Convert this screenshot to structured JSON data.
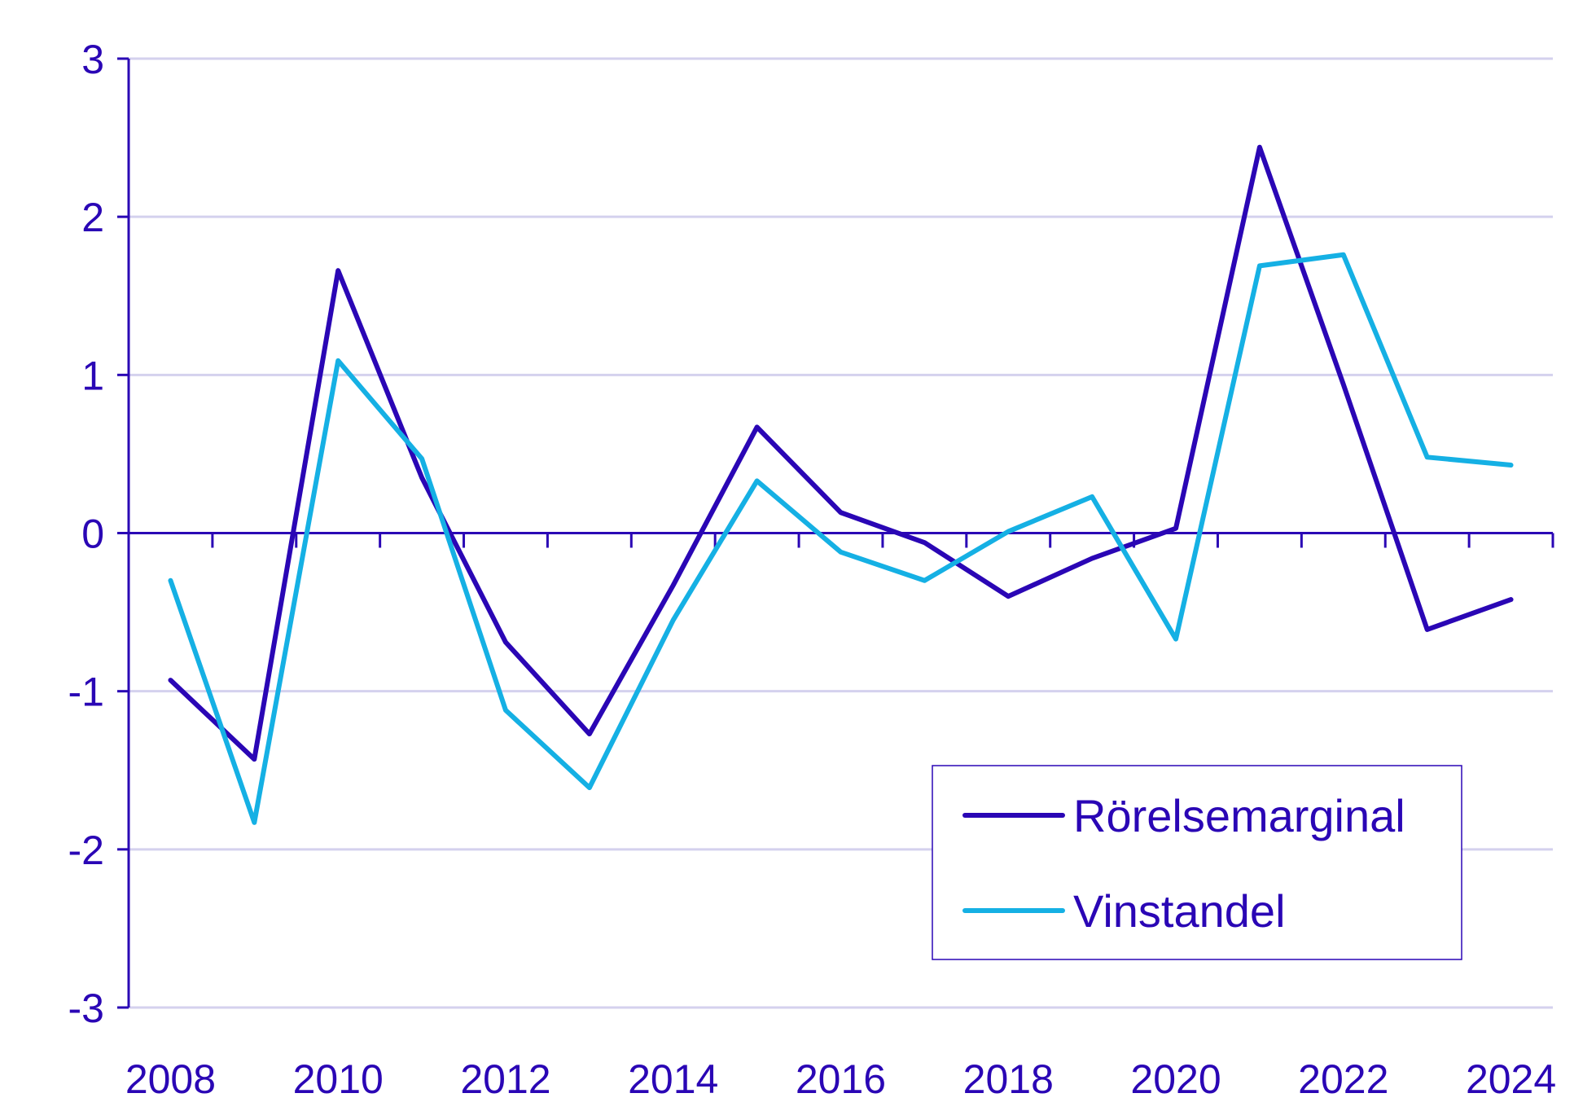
{
  "chart_data": {
    "type": "line",
    "title": "",
    "xlabel": "",
    "ylabel": "",
    "x": [
      2008,
      2009,
      2010,
      2011,
      2012,
      2013,
      2014,
      2015,
      2016,
      2017,
      2018,
      2019,
      2020,
      2021,
      2022,
      2023,
      2024
    ],
    "x_tick_labels": [
      "2008",
      "2010",
      "2012",
      "2014",
      "2016",
      "2018",
      "2020",
      "2022",
      "2024"
    ],
    "x_tick_values": [
      2008,
      2010,
      2012,
      2014,
      2016,
      2018,
      2020,
      2022,
      2024
    ],
    "y_tick_labels": [
      "3",
      "2",
      "1",
      "0",
      "-1",
      "-2",
      "-3"
    ],
    "y_tick_values": [
      3,
      2,
      1,
      0,
      -1,
      -2,
      -3
    ],
    "xlim": [
      2007.5,
      2024.5
    ],
    "ylim": [
      -3,
      3
    ],
    "grid": true,
    "legend_position": "bottom-right",
    "series": [
      {
        "name": "Rörelsemarginal",
        "color": "#2a06b5",
        "values": [
          -0.93,
          -1.43,
          1.66,
          0.35,
          -0.69,
          -1.27,
          -0.33,
          0.67,
          0.13,
          -0.06,
          -0.4,
          -0.16,
          0.03,
          2.44,
          0.94,
          -0.61,
          -0.42
        ]
      },
      {
        "name": "Vinstandel",
        "color": "#15b0e4",
        "values": [
          -0.3,
          -1.83,
          1.09,
          0.47,
          -1.12,
          -1.61,
          -0.55,
          0.33,
          -0.12,
          -0.3,
          0.01,
          0.23,
          -0.67,
          1.69,
          1.76,
          0.48,
          0.43
        ]
      }
    ]
  }
}
